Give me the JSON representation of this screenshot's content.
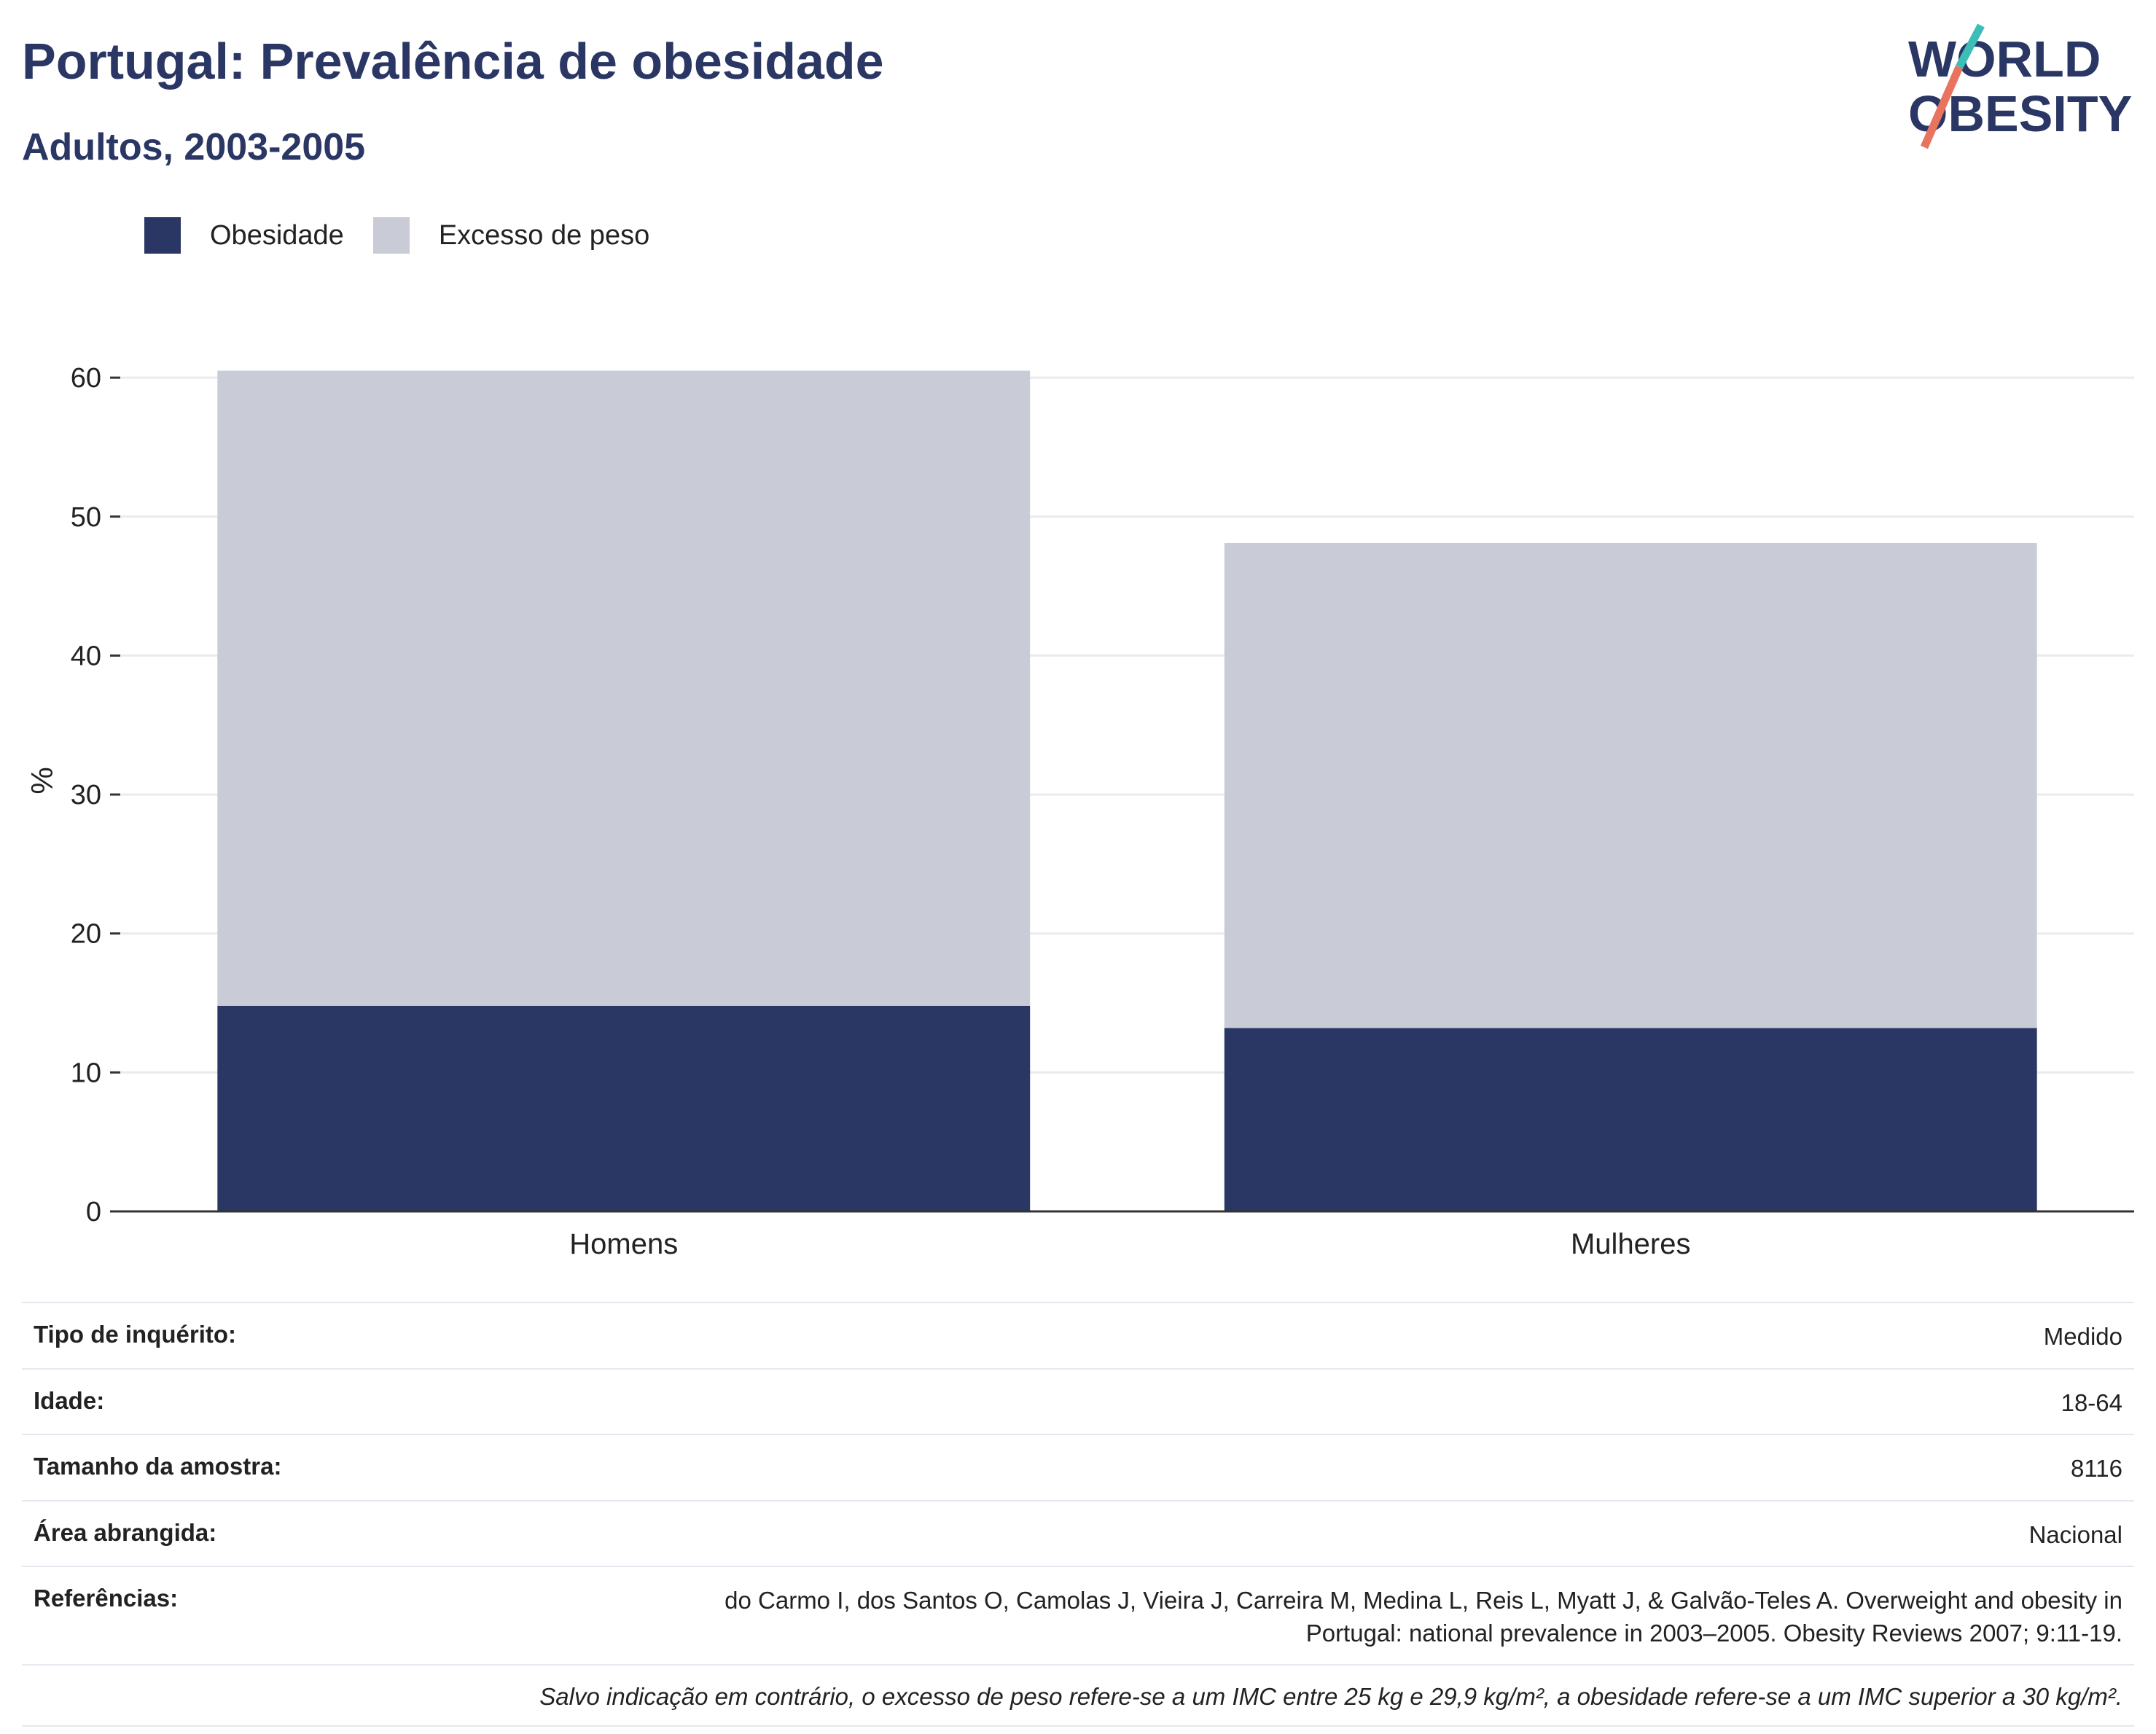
{
  "header": {
    "title": "Portugal: Prevalência de obesidade",
    "subtitle": "Adultos, 2003-2005"
  },
  "logo": {
    "line1": "WORLD",
    "line2": "OBESITY"
  },
  "colors": {
    "obesity": "#2a3663",
    "overweight": "#c9cbd7",
    "logo_teal": "#3dbdb7",
    "logo_coral": "#e8735f",
    "grid": "#e9ebef",
    "axis": "#333333"
  },
  "chart_data": {
    "type": "bar",
    "stacked": true,
    "categories": [
      "Homens",
      "Mulheres"
    ],
    "series": [
      {
        "name": "Obesidade",
        "values": [
          14.8,
          13.2
        ]
      },
      {
        "name": "Excesso de peso",
        "values": [
          45.7,
          34.9
        ]
      }
    ],
    "ylabel": "%",
    "ylim": [
      0,
      62
    ],
    "yticks": [
      0,
      10,
      20,
      30,
      40,
      50,
      60
    ],
    "grid": true,
    "legend_position": "top-left"
  },
  "meta": {
    "survey_type": {
      "label": "Tipo de inquérito:",
      "value": "Medido"
    },
    "age": {
      "label": "Idade:",
      "value": "18-64"
    },
    "sample_size": {
      "label": "Tamanho da amostra:",
      "value": "8116"
    },
    "area": {
      "label": "Área abrangida:",
      "value": "Nacional"
    },
    "references": {
      "label": "Referências:",
      "value_line1": "do Carmo I, dos Santos O, Camolas J, Vieira J, Carreira M, Medina L, Reis L, Myatt J, & Galvão-Teles A. Overweight and obesity in",
      "value_line2": "Portugal: national prevalence in 2003–2005. Obesity Reviews 2007; 9:11-19."
    },
    "note": "Salvo indicação em contrário, o excesso de peso refere-se a um IMC entre 25 kg e 29,9 kg/m², a obesidade refere-se a um IMC superior a 30 kg/m²."
  }
}
